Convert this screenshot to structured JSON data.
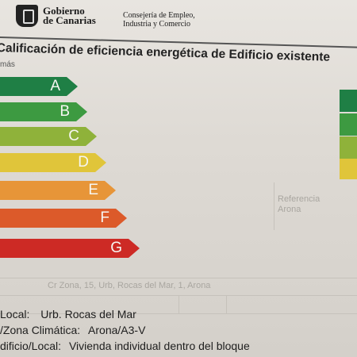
{
  "header": {
    "org_line1": "Gobierno",
    "org_line2": "de Canarias",
    "dept_line1": "Consejería de Empleo,",
    "dept_line2": "Industria y Comercio"
  },
  "title": "Calificación de eficiencia energética de Edificio existente",
  "subtitle": "más",
  "ratings": [
    {
      "letter": "A",
      "color": "#1f7f45"
    },
    {
      "letter": "B",
      "color": "#3d9a41"
    },
    {
      "letter": "C",
      "color": "#8fb23a"
    },
    {
      "letter": "D",
      "color": "#e0c53a"
    },
    {
      "letter": "E",
      "color": "#e79538"
    },
    {
      "letter": "F",
      "color": "#dc5a2a"
    },
    {
      "letter": "G",
      "color": "#cd2a25"
    }
  ],
  "fields": {
    "local_label": "Local:",
    "local_value": "Urb. Rocas del Mar",
    "zona_label": "/Zona Climática:",
    "zona_value": "Arona/A3-V",
    "edificio_label": "dificio/Local:",
    "edificio_value": "Vivienda individual dentro del bloque"
  },
  "background_text": {
    "row1": "Cr Zona, 15, Urb, Rocas del Mar, 1, Arona",
    "row2": "Referencia",
    "row3": "Arona"
  }
}
